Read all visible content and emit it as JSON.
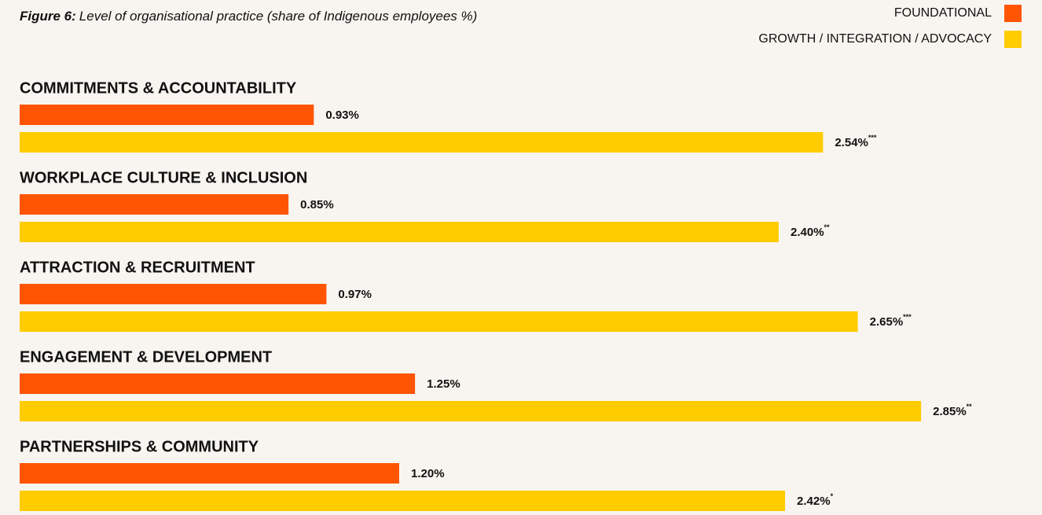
{
  "chart_data": {
    "type": "hbar",
    "title": {
      "label": "Figure 6:",
      "text": "Level of organisational practice (share of Indigenous employees %)"
    },
    "categories": [
      "COMMITMENTS & ACCOUNTABILITY",
      "WORKPLACE CULTURE &  INCLUSION",
      "ATTRACTION & RECRUITMENT",
      "ENGAGEMENT & DEVELOPMENT",
      "PARTNERSHIPS & COMMUNITY"
    ],
    "series": [
      {
        "name": "FOUNDATIONAL",
        "color": "#ff5500",
        "values": [
          0.93,
          0.85,
          0.97,
          1.25,
          1.2
        ],
        "value_labels": [
          "0.93%",
          "0.85%",
          "0.97%",
          "1.25%",
          "1.20%"
        ]
      },
      {
        "name": "GROWTH / INTEGRATION / ADVOCACY",
        "color": "#ffcc00",
        "values": [
          2.54,
          2.4,
          2.65,
          2.85,
          2.42
        ],
        "value_labels": [
          "2.54%",
          "2.40%",
          "2.65%",
          "2.85%",
          "2.42%"
        ],
        "significance": [
          "***",
          "**",
          "***",
          "**",
          "*"
        ]
      }
    ],
    "legend": "top-right"
  }
}
